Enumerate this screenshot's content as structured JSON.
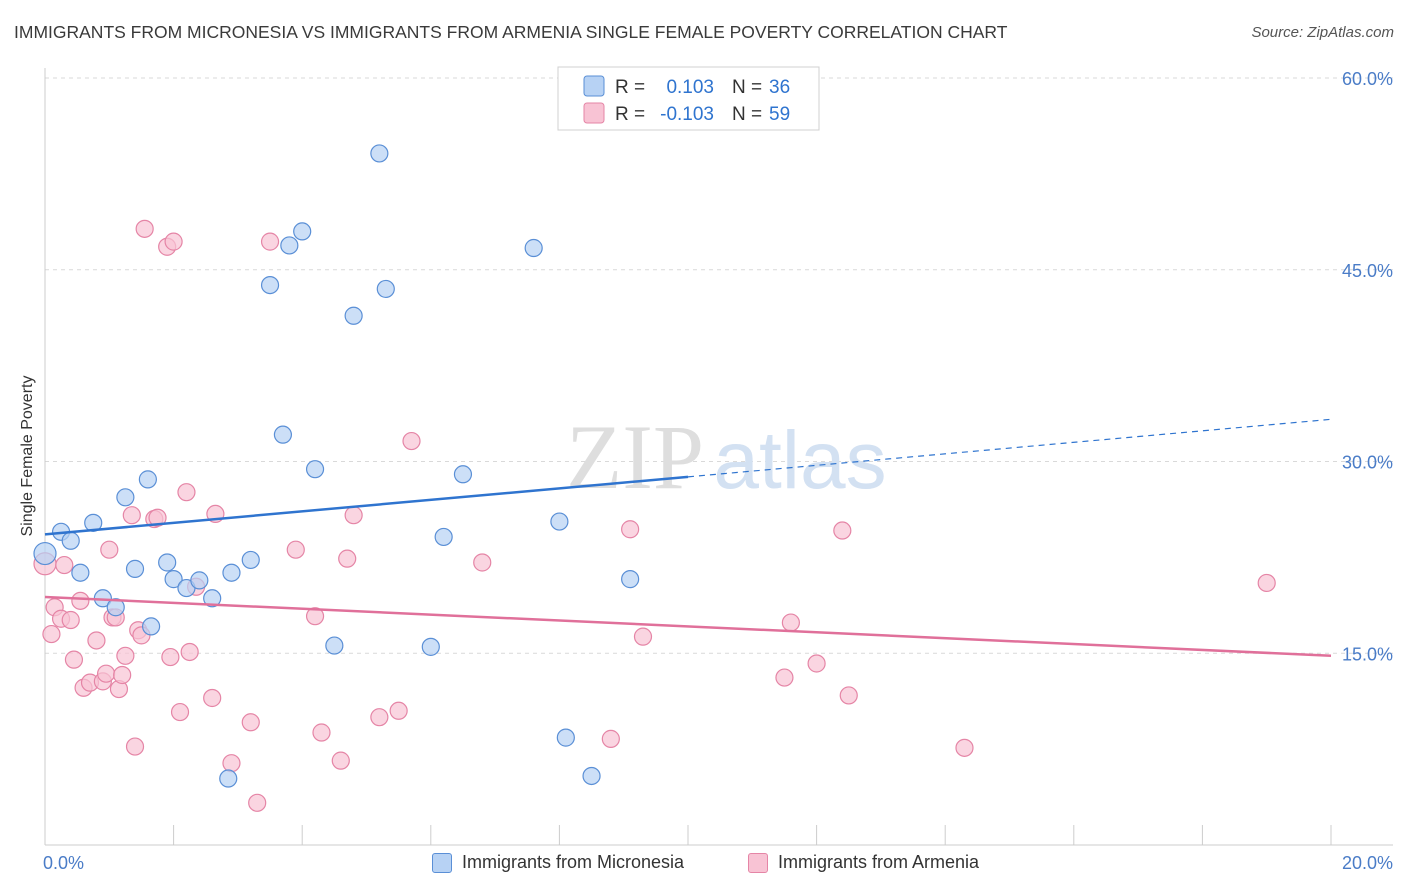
{
  "header": {
    "title": "IMMIGRANTS FROM MICRONESIA VS IMMIGRANTS FROM ARMENIA SINGLE FEMALE POVERTY CORRELATION CHART",
    "source": "Source: ZipAtlas.com"
  },
  "watermark": {
    "zip": "ZIP",
    "atlas": "atlas"
  },
  "colors": {
    "micronesia_fill": "#b7d2f4",
    "micronesia_stroke": "#5a8fd6",
    "micronesia_line": "#2f74cf",
    "armenia_fill": "#f8c3d4",
    "armenia_stroke": "#e585a6",
    "armenia_line": "#e0709a",
    "axis_label": "#4a7cc7",
    "grid": "#d9d9d9"
  },
  "legend": {
    "rows": [
      {
        "r_label": "R =",
        "r_value": "0.103",
        "n_label": "N =",
        "n_value": "36"
      },
      {
        "r_label": "R =",
        "r_value": "-0.103",
        "n_label": "N =",
        "n_value": "59"
      }
    ]
  },
  "chart_data": {
    "type": "scatter",
    "title": "IMMIGRANTS FROM MICRONESIA VS IMMIGRANTS FROM ARMENIA SINGLE FEMALE POVERTY CORRELATION CHART",
    "xlabel": "",
    "ylabel": "Single Female Poverty",
    "xlim": [
      0,
      20
    ],
    "ylim": [
      0,
      60
    ],
    "x_tick_labels": [
      "0.0%",
      "20.0%"
    ],
    "y_ticks": [
      15,
      30,
      45,
      60
    ],
    "y_tick_labels": [
      "15.0%",
      "30.0%",
      "45.0%",
      "60.0%"
    ],
    "grid": true,
    "legend_position": "top-center",
    "series": [
      {
        "name": "Immigrants from Micronesia",
        "r": 0.103,
        "n": 36,
        "trend": {
          "x0": 0,
          "y0": 24.3,
          "x1": 10,
          "y1": 28.8,
          "dashed_to_x": 20,
          "dashed_to_y": 33.3
        },
        "points": [
          [
            0.0,
            22.8
          ],
          [
            0.25,
            24.5
          ],
          [
            0.4,
            23.8
          ],
          [
            0.55,
            21.3
          ],
          [
            0.75,
            25.2
          ],
          [
            0.9,
            19.3
          ],
          [
            1.1,
            18.6
          ],
          [
            1.25,
            27.2
          ],
          [
            1.4,
            21.6
          ],
          [
            1.6,
            28.6
          ],
          [
            1.65,
            17.1
          ],
          [
            1.9,
            22.1
          ],
          [
            2.0,
            20.8
          ],
          [
            2.2,
            20.1
          ],
          [
            2.4,
            20.7
          ],
          [
            2.6,
            19.3
          ],
          [
            2.9,
            21.3
          ],
          [
            3.2,
            22.3
          ],
          [
            3.5,
            43.8
          ],
          [
            3.7,
            32.1
          ],
          [
            3.8,
            46.9
          ],
          [
            4.0,
            48.0
          ],
          [
            4.2,
            29.4
          ],
          [
            4.5,
            15.6
          ],
          [
            4.8,
            41.4
          ],
          [
            5.2,
            54.1
          ],
          [
            5.3,
            43.5
          ],
          [
            6.0,
            15.5
          ],
          [
            6.2,
            24.1
          ],
          [
            6.5,
            29.0
          ],
          [
            7.6,
            46.7
          ],
          [
            8.0,
            25.3
          ],
          [
            8.1,
            8.4
          ],
          [
            8.5,
            5.4
          ],
          [
            9.1,
            20.8
          ],
          [
            2.85,
            5.2
          ]
        ]
      },
      {
        "name": "Immigrants from Armenia",
        "r": -0.103,
        "n": 59,
        "trend": {
          "x0": 0,
          "y0": 19.4,
          "x1": 20,
          "y1": 14.8
        },
        "points": [
          [
            0.0,
            22.0
          ],
          [
            0.1,
            16.5
          ],
          [
            0.15,
            18.6
          ],
          [
            0.25,
            17.7
          ],
          [
            0.3,
            21.9
          ],
          [
            0.4,
            17.6
          ],
          [
            0.45,
            14.5
          ],
          [
            0.55,
            19.1
          ],
          [
            0.6,
            12.3
          ],
          [
            0.7,
            12.7
          ],
          [
            0.8,
            16.0
          ],
          [
            0.9,
            12.8
          ],
          [
            0.95,
            13.4
          ],
          [
            1.0,
            23.1
          ],
          [
            1.05,
            17.8
          ],
          [
            1.1,
            17.8
          ],
          [
            1.15,
            12.2
          ],
          [
            1.2,
            13.3
          ],
          [
            1.25,
            14.8
          ],
          [
            1.35,
            25.8
          ],
          [
            1.4,
            7.7
          ],
          [
            1.45,
            16.8
          ],
          [
            1.5,
            16.4
          ],
          [
            1.55,
            48.2
          ],
          [
            1.7,
            25.5
          ],
          [
            1.75,
            25.6
          ],
          [
            1.9,
            46.8
          ],
          [
            1.95,
            14.7
          ],
          [
            2.0,
            47.2
          ],
          [
            2.1,
            10.4
          ],
          [
            2.2,
            27.6
          ],
          [
            2.25,
            15.1
          ],
          [
            2.35,
            20.2
          ],
          [
            2.6,
            11.5
          ],
          [
            2.65,
            25.9
          ],
          [
            2.9,
            6.4
          ],
          [
            3.2,
            9.6
          ],
          [
            3.3,
            3.3
          ],
          [
            3.5,
            47.2
          ],
          [
            3.9,
            23.1
          ],
          [
            4.2,
            17.9
          ],
          [
            4.3,
            8.8
          ],
          [
            4.6,
            6.6
          ],
          [
            4.7,
            22.4
          ],
          [
            4.8,
            25.8
          ],
          [
            5.2,
            10.0
          ],
          [
            5.5,
            10.5
          ],
          [
            5.7,
            31.6
          ],
          [
            6.8,
            22.1
          ],
          [
            8.8,
            8.3
          ],
          [
            9.1,
            24.7
          ],
          [
            9.3,
            16.3
          ],
          [
            11.5,
            13.1
          ],
          [
            11.6,
            17.4
          ],
          [
            12.0,
            14.2
          ],
          [
            12.4,
            24.6
          ],
          [
            12.5,
            11.7
          ],
          [
            14.3,
            7.6
          ],
          [
            19.0,
            20.5
          ]
        ]
      }
    ]
  }
}
